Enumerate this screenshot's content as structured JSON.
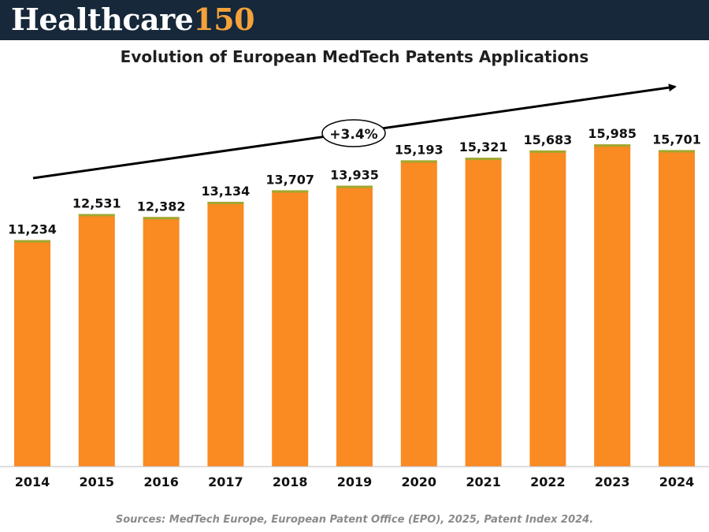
{
  "brand": {
    "name": "Healthcare",
    "number": "150"
  },
  "chart_data": {
    "type": "bar",
    "title": "Evolution of European MedTech Patents Applications",
    "categories": [
      "2014",
      "2015",
      "2016",
      "2017",
      "2018",
      "2019",
      "2020",
      "2021",
      "2022",
      "2023",
      "2024"
    ],
    "values": [
      11234,
      12531,
      12382,
      13134,
      13707,
      13935,
      15193,
      15321,
      15683,
      15985,
      15701
    ],
    "value_labels": [
      "11,234",
      "12,531",
      "12,382",
      "13,134",
      "13,707",
      "13,935",
      "15,193",
      "15,321",
      "15,683",
      "15,985",
      "15,701"
    ],
    "xlabel": "",
    "ylabel": "",
    "ylim": [
      0,
      16500
    ],
    "grid": false,
    "bar_color": "#fa8a22",
    "bar_top_color": "#9fa830",
    "annotation": {
      "text": "+3.4%",
      "type": "trend-arrow"
    }
  },
  "source": "Sources: MedTech Europe, European Patent Office (EPO), 2025, Patent Index 2024."
}
